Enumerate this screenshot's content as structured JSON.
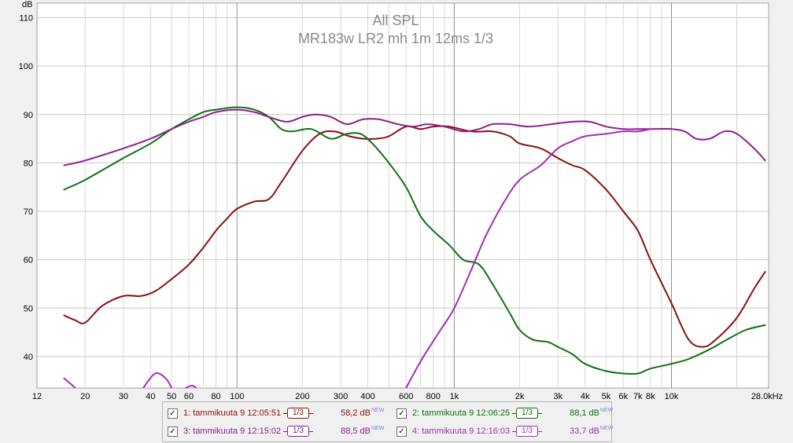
{
  "chart_data": {
    "type": "line",
    "title": "All SPL",
    "subtitle": "MR183w LR2 mh 1m 12ms 1/3",
    "ylabel": "dB",
    "xlabel": "",
    "xscale": "log",
    "xlim": [
      12,
      28000
    ],
    "ylim": [
      33.5,
      113
    ],
    "yticks": [
      110,
      100,
      90,
      80,
      70,
      60,
      50,
      40
    ],
    "xticks": [
      {
        "v": 12,
        "label": "12"
      },
      {
        "v": 20,
        "label": "20"
      },
      {
        "v": 30,
        "label": "30"
      },
      {
        "v": 40,
        "label": "40"
      },
      {
        "v": 50,
        "label": "50"
      },
      {
        "v": 60,
        "label": "60"
      },
      {
        "v": 80,
        "label": "80"
      },
      {
        "v": 100,
        "label": "100"
      },
      {
        "v": 200,
        "label": "200"
      },
      {
        "v": 300,
        "label": "300"
      },
      {
        "v": 400,
        "label": "400"
      },
      {
        "v": 600,
        "label": "600"
      },
      {
        "v": 800,
        "label": "800"
      },
      {
        "v": 1000,
        "label": "1k"
      },
      {
        "v": 2000,
        "label": "2k"
      },
      {
        "v": 3000,
        "label": "3k"
      },
      {
        "v": 4000,
        "label": "4k"
      },
      {
        "v": 5000,
        "label": "5k"
      },
      {
        "v": 6000,
        "label": "6k"
      },
      {
        "v": 7000,
        "label": "7k"
      },
      {
        "v": 8000,
        "label": "8k"
      },
      {
        "v": 10000,
        "label": "10k"
      },
      {
        "v": 28000,
        "label": "28,0kHz"
      }
    ],
    "grid": true,
    "series": [
      {
        "name": "1: tammikuuta 9 12:05:51",
        "color": "#8b1010",
        "points": [
          [
            16,
            48.5
          ],
          [
            18,
            47.5
          ],
          [
            20,
            47
          ],
          [
            24,
            50.5
          ],
          [
            30,
            52.5
          ],
          [
            36,
            52.5
          ],
          [
            42,
            53.5
          ],
          [
            50,
            56
          ],
          [
            60,
            59
          ],
          [
            70,
            62.5
          ],
          [
            80,
            66
          ],
          [
            90,
            68.5
          ],
          [
            100,
            70.5
          ],
          [
            120,
            72
          ],
          [
            140,
            72.5
          ],
          [
            160,
            76
          ],
          [
            200,
            82.5
          ],
          [
            240,
            86
          ],
          [
            280,
            86.5
          ],
          [
            330,
            85.5
          ],
          [
            380,
            85
          ],
          [
            440,
            85
          ],
          [
            500,
            85.5
          ],
          [
            600,
            87.5
          ],
          [
            700,
            87
          ],
          [
            800,
            87.5
          ],
          [
            950,
            87.5
          ],
          [
            1200,
            86.5
          ],
          [
            1500,
            86.5
          ],
          [
            1800,
            85.5
          ],
          [
            2000,
            84
          ],
          [
            2500,
            83
          ],
          [
            3000,
            81
          ],
          [
            3500,
            79.5
          ],
          [
            4000,
            78.5
          ],
          [
            5000,
            74.5
          ],
          [
            6000,
            70
          ],
          [
            7000,
            66
          ],
          [
            8000,
            60
          ],
          [
            10000,
            51
          ],
          [
            12000,
            43.5
          ],
          [
            14000,
            42
          ],
          [
            16000,
            43.5
          ],
          [
            20000,
            48
          ],
          [
            24000,
            54
          ],
          [
            27000,
            57.5
          ]
        ]
      },
      {
        "name": "2: tammikuuta 9 12:06:25",
        "color": "#107010",
        "points": [
          [
            16,
            74.5
          ],
          [
            20,
            76.5
          ],
          [
            30,
            81
          ],
          [
            40,
            84
          ],
          [
            50,
            87
          ],
          [
            60,
            89
          ],
          [
            70,
            90.5
          ],
          [
            80,
            91
          ],
          [
            100,
            91.5
          ],
          [
            120,
            91
          ],
          [
            140,
            89.5
          ],
          [
            160,
            87
          ],
          [
            180,
            86.5
          ],
          [
            220,
            87
          ],
          [
            270,
            85
          ],
          [
            320,
            86
          ],
          [
            370,
            86
          ],
          [
            420,
            84
          ],
          [
            500,
            80
          ],
          [
            600,
            75
          ],
          [
            700,
            69
          ],
          [
            800,
            66
          ],
          [
            950,
            63
          ],
          [
            1100,
            60
          ],
          [
            1300,
            59
          ],
          [
            1500,
            55
          ],
          [
            1800,
            49
          ],
          [
            2000,
            45.5
          ],
          [
            2300,
            43.5
          ],
          [
            2700,
            43
          ],
          [
            3000,
            42
          ],
          [
            3500,
            40.5
          ],
          [
            4000,
            38.5
          ],
          [
            5000,
            37
          ],
          [
            6000,
            36.5
          ],
          [
            7000,
            36.5
          ],
          [
            8000,
            37.5
          ],
          [
            10000,
            38.5
          ],
          [
            12000,
            39.5
          ],
          [
            15000,
            41.5
          ],
          [
            18000,
            43.5
          ],
          [
            22000,
            45.5
          ],
          [
            27000,
            46.5
          ]
        ]
      },
      {
        "name": "3: tammikuuta 9 12:15:02",
        "color": "#8b2090",
        "points": [
          [
            16,
            79.5
          ],
          [
            20,
            80.5
          ],
          [
            30,
            83
          ],
          [
            40,
            85
          ],
          [
            50,
            87
          ],
          [
            60,
            88.5
          ],
          [
            70,
            89.5
          ],
          [
            80,
            90.5
          ],
          [
            100,
            91
          ],
          [
            120,
            90.5
          ],
          [
            140,
            89.5
          ],
          [
            170,
            88.5
          ],
          [
            200,
            89.5
          ],
          [
            230,
            90
          ],
          [
            270,
            89.5
          ],
          [
            320,
            88
          ],
          [
            380,
            89
          ],
          [
            450,
            89
          ],
          [
            550,
            88
          ],
          [
            650,
            87.5
          ],
          [
            750,
            88
          ],
          [
            900,
            87.5
          ],
          [
            1100,
            86.5
          ],
          [
            1300,
            87
          ],
          [
            1500,
            88
          ],
          [
            1800,
            88
          ],
          [
            2200,
            87.5
          ],
          [
            2800,
            88
          ],
          [
            3500,
            88.5
          ],
          [
            4200,
            88.5
          ],
          [
            5000,
            87.5
          ],
          [
            6000,
            87
          ],
          [
            7000,
            87
          ],
          [
            8000,
            87
          ],
          [
            10000,
            87
          ],
          [
            11500,
            86.5
          ],
          [
            13000,
            85
          ],
          [
            15000,
            85
          ],
          [
            17500,
            86.5
          ],
          [
            20000,
            86
          ],
          [
            24000,
            83
          ],
          [
            27000,
            80.5
          ]
        ]
      },
      {
        "name": "4: tammikuuta 9 12:16:03",
        "color": "#a030b0",
        "segments": [
          [
            [
              16,
              35.5
            ],
            [
              17,
              34.5
            ],
            [
              18,
              33.5
            ]
          ],
          [
            [
              37,
              33.5
            ],
            [
              42,
              36.5
            ],
            [
              47,
              35.5
            ],
            [
              50,
              33.5
            ]
          ],
          [
            [
              58,
              33.5
            ],
            [
              62,
              34
            ],
            [
              65,
              33.5
            ]
          ],
          [
            [
              600,
              33.5
            ],
            [
              700,
              39
            ],
            [
              850,
              45
            ],
            [
              1000,
              50
            ],
            [
              1200,
              58
            ],
            [
              1400,
              65
            ],
            [
              1700,
              72
            ],
            [
              2000,
              76.5
            ],
            [
              2500,
              79.5
            ],
            [
              3000,
              83
            ],
            [
              3500,
              84.5
            ],
            [
              4000,
              85.5
            ],
            [
              5000,
              86
            ],
            [
              6000,
              86.5
            ],
            [
              7000,
              86.5
            ],
            [
              8000,
              87
            ]
          ]
        ]
      }
    ]
  },
  "legend": {
    "items": [
      {
        "checked": "✓",
        "label": "1: tammikuuta 9 12:05:51",
        "smoothing": "1/3",
        "value": "58,2 dB",
        "badge": "NEW",
        "color": "#8b1010"
      },
      {
        "checked": "✓",
        "label": "2: tammikuuta 9 12:06:25",
        "smoothing": "1/3",
        "value": "88,1 dB",
        "badge": "NEW",
        "color": "#107010"
      },
      {
        "checked": "✓",
        "label": "3: tammikuuta 9 12:15:02",
        "smoothing": "1/3",
        "value": "88,5 dB",
        "badge": "NEW",
        "color": "#8b2090"
      },
      {
        "checked": "✓",
        "label": "4: tammikuuta 9 12:16:03",
        "smoothing": "1/3",
        "value": "33,7 dB",
        "badge": "NEW",
        "color": "#a030b0"
      }
    ]
  }
}
